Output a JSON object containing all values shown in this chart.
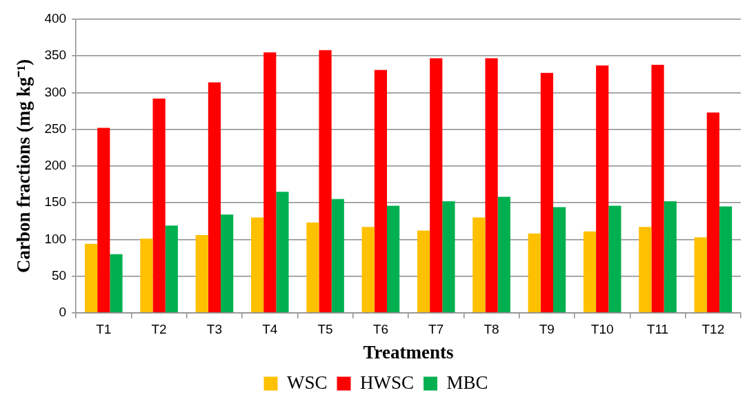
{
  "chart_data": {
    "type": "bar",
    "xlabel": "Treatments",
    "ylabel": "Carbon fractions (mg kg⁻¹)",
    "categories": [
      "T1",
      "T2",
      "T3",
      "T4",
      "T5",
      "T6",
      "T7",
      "T8",
      "T9",
      "T10",
      "T11",
      "T12"
    ],
    "series": [
      {
        "name": "WSC",
        "color": "#ffc000",
        "values": [
          94,
          101,
          106,
          130,
          123,
          117,
          112,
          130,
          108,
          111,
          117,
          103
        ]
      },
      {
        "name": "HWSC",
        "color": "#ff0000",
        "values": [
          252,
          292,
          314,
          355,
          358,
          331,
          347,
          347,
          327,
          337,
          338,
          273
        ]
      },
      {
        "name": "MBC",
        "color": "#00b050",
        "values": [
          80,
          119,
          134,
          165,
          155,
          146,
          152,
          158,
          144,
          146,
          152,
          145
        ]
      }
    ],
    "ylim": [
      0,
      400
    ],
    "yticks": [
      0,
      50,
      100,
      150,
      200,
      250,
      300,
      350,
      400
    ],
    "grid": "y",
    "legend": "bottom"
  }
}
